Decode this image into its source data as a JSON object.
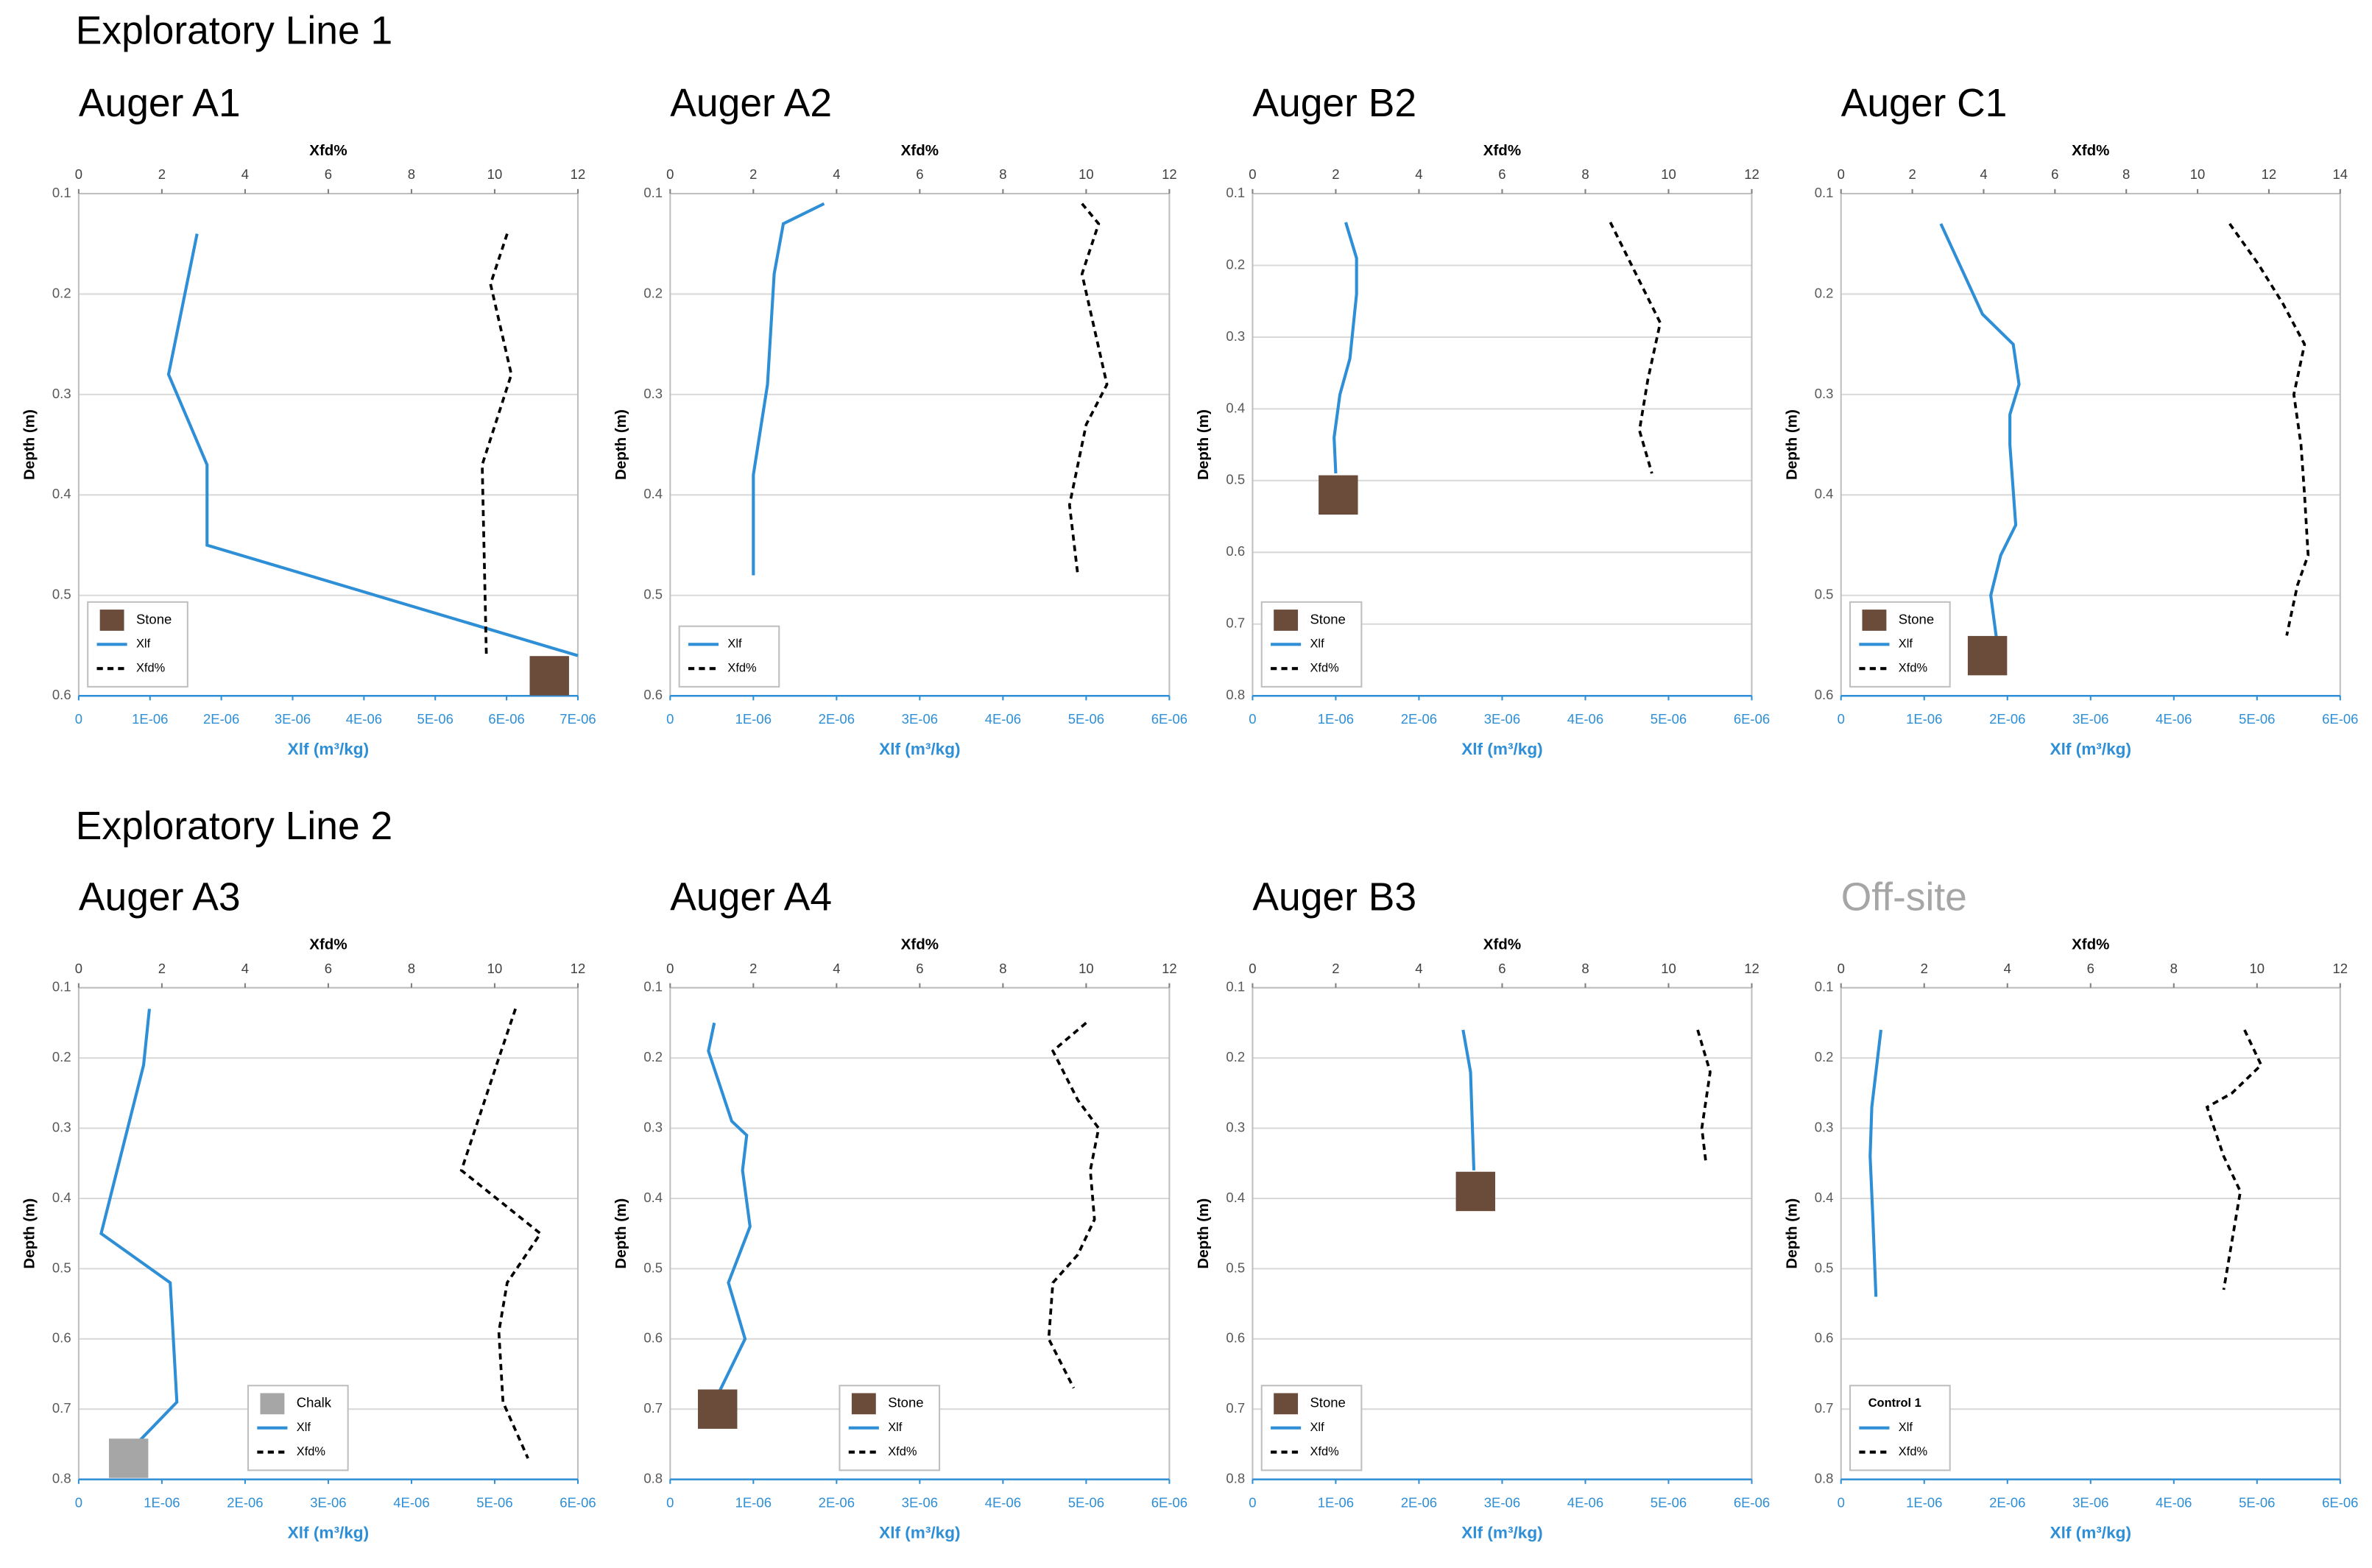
{
  "headers": [
    "Exploratory Line 1",
    "Exploratory Line 2"
  ],
  "chart_data": [
    {
      "type": "line",
      "title": "Auger A1",
      "xlabel": "Xlf (m³/kg)",
      "x2label": "Xfd%",
      "ylabel": "Depth (m)",
      "xlim": [
        0,
        7e-06
      ],
      "xticks": [
        0,
        {
          "value": 1e-06,
          "label": "1E-06"
        },
        {
          "value": 2e-06,
          "label": "2E-06"
        },
        {
          "value": 3e-06,
          "label": "3E-06"
        },
        {
          "value": 4e-06,
          "label": "4E-06"
        },
        {
          "value": 5e-06,
          "label": "5E-06"
        },
        {
          "value": 6e-06,
          "label": "6E-06"
        },
        {
          "value": 7e-06,
          "label": "7E-06"
        }
      ],
      "x2lim": [
        0,
        12
      ],
      "x2ticks": [
        0,
        2,
        4,
        6,
        8,
        10,
        12
      ],
      "ylim": [
        0.1,
        0.6
      ],
      "yticks": [
        0.1,
        0.2,
        0.3,
        0.4,
        0.5,
        0.6
      ],
      "y_inverted": true,
      "grid": true,
      "legend": "lower left",
      "marker": {
        "name": "Stone",
        "color": "#6b4c3b",
        "value": 6.6e-06,
        "depth": 0.58
      },
      "series": [
        {
          "name": "Xlf",
          "color": "#2e8fd6",
          "depth": [
            0.14,
            0.28,
            0.37,
            0.45,
            0.56
          ],
          "values": [
            1.66e-06,
            1.26e-06,
            1.8e-06,
            1.8e-06,
            7e-06
          ]
        },
        {
          "name": "Xfd%",
          "color": "#000000",
          "axis": "x2",
          "dashed": true,
          "depth": [
            0.14,
            0.19,
            0.28,
            0.37,
            0.56
          ],
          "values": [
            10.3,
            9.9,
            10.4,
            9.7,
            9.8
          ]
        }
      ]
    },
    {
      "type": "line",
      "title": "Auger A2",
      "xlabel": "Xlf (m³/kg)",
      "x2label": "Xfd%",
      "ylabel": "Depth (m)",
      "xlim": [
        0,
        6e-06
      ],
      "xticks": [
        0,
        {
          "value": 1e-06,
          "label": "1E-06"
        },
        {
          "value": 2e-06,
          "label": "2E-06"
        },
        {
          "value": 3e-06,
          "label": "3E-06"
        },
        {
          "value": 4e-06,
          "label": "4E-06"
        },
        {
          "value": 5e-06,
          "label": "5E-06"
        },
        {
          "value": 6e-06,
          "label": "6E-06"
        }
      ],
      "x2lim": [
        0,
        12
      ],
      "x2ticks": [
        0,
        2,
        4,
        6,
        8,
        10,
        12
      ],
      "ylim": [
        0.1,
        0.6
      ],
      "yticks": [
        0.1,
        0.2,
        0.3,
        0.4,
        0.5,
        0.6
      ],
      "y_inverted": true,
      "grid": true,
      "legend": "lower left",
      "series": [
        {
          "name": "Xlf",
          "color": "#2e8fd6",
          "depth": [
            0.11,
            0.13,
            0.18,
            0.29,
            0.38,
            0.48
          ],
          "values": [
            1.85e-06,
            1.36e-06,
            1.25e-06,
            1.17e-06,
            1e-06,
            1e-06
          ]
        },
        {
          "name": "Xfd%",
          "color": "#000000",
          "axis": "x2",
          "dashed": true,
          "depth": [
            0.11,
            0.13,
            0.18,
            0.29,
            0.33,
            0.41,
            0.48
          ],
          "values": [
            9.9,
            10.3,
            9.9,
            10.5,
            10.0,
            9.6,
            9.8
          ]
        }
      ]
    },
    {
      "type": "line",
      "title": "Auger B2",
      "xlabel": "Xlf (m³/kg)",
      "x2label": "Xfd%",
      "ylabel": "Depth (m)",
      "xlim": [
        0,
        6e-06
      ],
      "xticks": [
        0,
        {
          "value": 1e-06,
          "label": "1E-06"
        },
        {
          "value": 2e-06,
          "label": "2E-06"
        },
        {
          "value": 3e-06,
          "label": "3E-06"
        },
        {
          "value": 4e-06,
          "label": "4E-06"
        },
        {
          "value": 5e-06,
          "label": "5E-06"
        },
        {
          "value": 6e-06,
          "label": "6E-06"
        }
      ],
      "x2lim": [
        0,
        12
      ],
      "x2ticks": [
        0,
        2,
        4,
        6,
        8,
        10,
        12
      ],
      "ylim": [
        0.1,
        0.8
      ],
      "yticks": [
        0.1,
        0.2,
        0.3,
        0.4,
        0.5,
        0.6,
        0.7,
        0.8
      ],
      "y_inverted": true,
      "grid": true,
      "legend": "lower left",
      "marker": {
        "name": "Stone",
        "color": "#6b4c3b",
        "value": 1.03e-06,
        "depth": 0.52
      },
      "series": [
        {
          "name": "Xlf",
          "color": "#2e8fd6",
          "depth": [
            0.14,
            0.19,
            0.24,
            0.33,
            0.38,
            0.44,
            0.49
          ],
          "values": [
            1.12e-06,
            1.25e-06,
            1.25e-06,
            1.17e-06,
            1.05e-06,
            9.8e-07,
            1e-06
          ]
        },
        {
          "name": "Xfd%",
          "color": "#000000",
          "axis": "x2",
          "dashed": true,
          "depth": [
            0.14,
            0.21,
            0.28,
            0.36,
            0.43,
            0.49
          ],
          "values": [
            8.6,
            9.2,
            9.8,
            9.5,
            9.3,
            9.6
          ]
        }
      ]
    },
    {
      "type": "line",
      "title": "Auger C1",
      "xlabel": "Xlf (m³/kg)",
      "x2label": "Xfd%",
      "ylabel": "Depth (m)",
      "xlim": [
        0,
        6e-06
      ],
      "xticks": [
        0,
        {
          "value": 1e-06,
          "label": "1E-06"
        },
        {
          "value": 2e-06,
          "label": "2E-06"
        },
        {
          "value": 3e-06,
          "label": "3E-06"
        },
        {
          "value": 4e-06,
          "label": "4E-06"
        },
        {
          "value": 5e-06,
          "label": "5E-06"
        },
        {
          "value": 6e-06,
          "label": "6E-06"
        }
      ],
      "x2lim": [
        0,
        14
      ],
      "x2ticks": [
        0,
        2,
        4,
        6,
        8,
        10,
        12,
        14
      ],
      "ylim": [
        0.1,
        0.6
      ],
      "yticks": [
        0.1,
        0.2,
        0.3,
        0.4,
        0.5,
        0.6
      ],
      "y_inverted": true,
      "grid": true,
      "legend": "lower left",
      "marker": {
        "name": "Stone",
        "color": "#6b4c3b",
        "value": 1.76e-06,
        "depth": 0.56
      },
      "series": [
        {
          "name": "Xlf",
          "color": "#2e8fd6",
          "depth": [
            0.13,
            0.22,
            0.25,
            0.29,
            0.32,
            0.35,
            0.43,
            0.46,
            0.5,
            0.55
          ],
          "values": [
            1.2e-06,
            1.7e-06,
            2.07e-06,
            2.14e-06,
            2.03e-06,
            2.03e-06,
            2.1e-06,
            1.92e-06,
            1.8e-06,
            1.88e-06
          ]
        },
        {
          "name": "Xfd%",
          "color": "#000000",
          "axis": "x2",
          "dashed": true,
          "depth": [
            0.13,
            0.17,
            0.21,
            0.25,
            0.3,
            0.35,
            0.4,
            0.46,
            0.49,
            0.54
          ],
          "values": [
            10.9,
            11.7,
            12.4,
            13.0,
            12.7,
            12.9,
            13.0,
            13.1,
            12.8,
            12.5
          ]
        }
      ]
    },
    {
      "type": "line",
      "title": "Auger A3",
      "xlabel": "Xlf (m³/kg)",
      "x2label": "Xfd%",
      "ylabel": "Depth (m)",
      "xlim": [
        0,
        6e-06
      ],
      "xticks": [
        0,
        {
          "value": 1e-06,
          "label": "1E-06"
        },
        {
          "value": 2e-06,
          "label": "2E-06"
        },
        {
          "value": 3e-06,
          "label": "3E-06"
        },
        {
          "value": 4e-06,
          "label": "4E-06"
        },
        {
          "value": 5e-06,
          "label": "5E-06"
        },
        {
          "value": 6e-06,
          "label": "6E-06"
        }
      ],
      "x2lim": [
        0,
        12
      ],
      "x2ticks": [
        0,
        2,
        4,
        6,
        8,
        10,
        12
      ],
      "ylim": [
        0.1,
        0.8
      ],
      "yticks": [
        0.1,
        0.2,
        0.3,
        0.4,
        0.5,
        0.6,
        0.7,
        0.8
      ],
      "y_inverted": true,
      "grid": true,
      "legend": "lower center",
      "marker": {
        "name": "Chalk",
        "color": "#a6a6a6",
        "value": 6e-07,
        "depth": 0.77
      },
      "series": [
        {
          "name": "Xlf",
          "color": "#2e8fd6",
          "depth": [
            0.13,
            0.21,
            0.45,
            0.52,
            0.69,
            0.75
          ],
          "values": [
            8.5e-07,
            7.8e-07,
            2.7e-07,
            1.1e-06,
            1.18e-06,
            6.9e-07
          ]
        },
        {
          "name": "Xfd%",
          "color": "#000000",
          "axis": "x2",
          "dashed": true,
          "depth": [
            0.13,
            0.2,
            0.36,
            0.45,
            0.52,
            0.59,
            0.69,
            0.77
          ],
          "values": [
            10.5,
            10.1,
            9.2,
            11.1,
            10.3,
            10.1,
            10.2,
            10.8
          ]
        }
      ]
    },
    {
      "type": "line",
      "title": "Auger A4",
      "xlabel": "Xlf (m³/kg)",
      "x2label": "Xfd%",
      "ylabel": "Depth (m)",
      "xlim": [
        0,
        6e-06
      ],
      "xticks": [
        0,
        {
          "value": 1e-06,
          "label": "1E-06"
        },
        {
          "value": 2e-06,
          "label": "2E-06"
        },
        {
          "value": 3e-06,
          "label": "3E-06"
        },
        {
          "value": 4e-06,
          "label": "4E-06"
        },
        {
          "value": 5e-06,
          "label": "5E-06"
        },
        {
          "value": 6e-06,
          "label": "6E-06"
        }
      ],
      "x2lim": [
        0,
        12
      ],
      "x2ticks": [
        0,
        2,
        4,
        6,
        8,
        10,
        12
      ],
      "ylim": [
        0.1,
        0.8
      ],
      "yticks": [
        0.1,
        0.2,
        0.3,
        0.4,
        0.5,
        0.6,
        0.7,
        0.8
      ],
      "y_inverted": true,
      "grid": true,
      "legend": "lower center",
      "marker": {
        "name": "Stone",
        "color": "#6b4c3b",
        "value": 5.7e-07,
        "depth": 0.7
      },
      "series": [
        {
          "name": "Xlf",
          "color": "#2e8fd6",
          "depth": [
            0.15,
            0.19,
            0.29,
            0.31,
            0.36,
            0.44,
            0.52,
            0.6,
            0.69
          ],
          "values": [
            5.3e-07,
            4.6e-07,
            7.4e-07,
            9.2e-07,
            8.7e-07,
            9.6e-07,
            7e-07,
            9e-07,
            5.3e-07
          ]
        },
        {
          "name": "Xfd%",
          "color": "#000000",
          "axis": "x2",
          "dashed": true,
          "depth": [
            0.15,
            0.19,
            0.26,
            0.3,
            0.36,
            0.43,
            0.48,
            0.52,
            0.6,
            0.67
          ],
          "values": [
            10.0,
            9.2,
            9.8,
            10.3,
            10.1,
            10.2,
            9.8,
            9.2,
            9.1,
            9.7
          ]
        }
      ]
    },
    {
      "type": "line",
      "title": "Auger B3",
      "xlabel": "Xlf (m³/kg)",
      "x2label": "Xfd%",
      "ylabel": "Depth (m)",
      "xlim": [
        0,
        6e-06
      ],
      "xticks": [
        0,
        {
          "value": 1e-06,
          "label": "1E-06"
        },
        {
          "value": 2e-06,
          "label": "2E-06"
        },
        {
          "value": 3e-06,
          "label": "3E-06"
        },
        {
          "value": 4e-06,
          "label": "4E-06"
        },
        {
          "value": 5e-06,
          "label": "5E-06"
        },
        {
          "value": 6e-06,
          "label": "6E-06"
        }
      ],
      "x2lim": [
        0,
        12
      ],
      "x2ticks": [
        0,
        2,
        4,
        6,
        8,
        10,
        12
      ],
      "ylim": [
        0.1,
        0.8
      ],
      "yticks": [
        0.1,
        0.2,
        0.3,
        0.4,
        0.5,
        0.6,
        0.7,
        0.8
      ],
      "y_inverted": true,
      "grid": true,
      "legend": "lower left",
      "marker": {
        "name": "Stone",
        "color": "#6b4c3b",
        "value": 2.68e-06,
        "depth": 0.39
      },
      "series": [
        {
          "name": "Xlf",
          "color": "#2e8fd6",
          "depth": [
            0.16,
            0.22,
            0.36
          ],
          "values": [
            2.53e-06,
            2.62e-06,
            2.66e-06
          ]
        },
        {
          "name": "Xfd%",
          "color": "#000000",
          "axis": "x2",
          "dashed": true,
          "depth": [
            0.16,
            0.22,
            0.3,
            0.35
          ],
          "values": [
            10.7,
            11.0,
            10.8,
            10.9
          ]
        }
      ]
    },
    {
      "type": "line",
      "title": "Off-site",
      "title_color": "#a6a6a6",
      "xlabel": "Xlf (m³/kg)",
      "x2label": "Xfd%",
      "ylabel": "Depth (m)",
      "xlim": [
        0,
        6e-06
      ],
      "xticks": [
        0,
        {
          "value": 1e-06,
          "label": "1E-06"
        },
        {
          "value": 2e-06,
          "label": "2E-06"
        },
        {
          "value": 3e-06,
          "label": "3E-06"
        },
        {
          "value": 4e-06,
          "label": "4E-06"
        },
        {
          "value": 5e-06,
          "label": "5E-06"
        },
        {
          "value": 6e-06,
          "label": "6E-06"
        }
      ],
      "x2lim": [
        0,
        12
      ],
      "x2ticks": [
        0,
        2,
        4,
        6,
        8,
        10,
        12
      ],
      "ylim": [
        0.1,
        0.8
      ],
      "yticks": [
        0.1,
        0.2,
        0.3,
        0.4,
        0.5,
        0.6,
        0.7,
        0.8
      ],
      "y_inverted": true,
      "grid": true,
      "legend": "lower left",
      "legend_title": "Control 1",
      "series": [
        {
          "name": "Xlf",
          "color": "#2e8fd6",
          "depth": [
            0.16,
            0.27,
            0.34,
            0.42,
            0.54
          ],
          "values": [
            4.8e-07,
            3.7e-07,
            3.5e-07,
            3.8e-07,
            4.2e-07
          ]
        },
        {
          "name": "Xfd%",
          "color": "#000000",
          "axis": "x2",
          "dashed": true,
          "depth": [
            0.16,
            0.21,
            0.25,
            0.27,
            0.34,
            0.39,
            0.46,
            0.53
          ],
          "values": [
            9.7,
            10.1,
            9.4,
            8.8,
            9.2,
            9.6,
            9.4,
            9.2
          ]
        }
      ]
    }
  ]
}
